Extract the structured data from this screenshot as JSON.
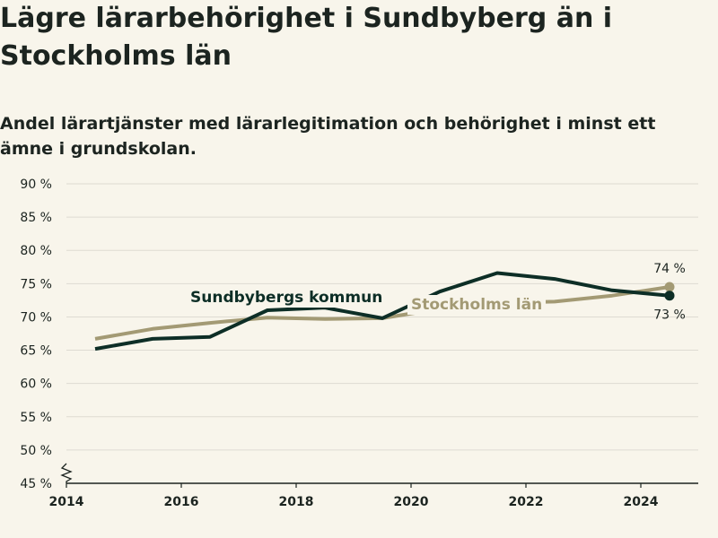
{
  "title": "Lägre lärarbehörighet i Sundbyberg än i Stockholms län",
  "subtitle": "Andel lärartjänster med lärarlegitimation och behörighet i minst ett ämne i grundskolan.",
  "colors": {
    "background": "#f8f5eb",
    "sundbyberg": "#0d2e26",
    "stockholm": "#a39a74",
    "grid": "#dedbd2",
    "axis": "#1c2420"
  },
  "chart_data": {
    "type": "line",
    "x_ticks": [
      "2014",
      "2016",
      "2018",
      "2020",
      "2022",
      "2024"
    ],
    "y_ticks": [
      "45 %",
      "50 %",
      "55 %",
      "60 %",
      "65 %",
      "70 %",
      "75 %",
      "80 %",
      "85 %",
      "90 %"
    ],
    "xlim": [
      2014,
      2025
    ],
    "ylim": [
      45,
      90
    ],
    "y_axis_break": true,
    "grid": true,
    "series": [
      {
        "name": "Stockholms län",
        "color": "#a39a74",
        "x": [
          2014.5,
          2015.5,
          2016.5,
          2017.5,
          2018.5,
          2019.5,
          2020.5,
          2021.5,
          2022.5,
          2023.5,
          2024.5
        ],
        "y": [
          66.7,
          68.2,
          69.1,
          69.9,
          69.7,
          69.8,
          71.2,
          72.1,
          72.3,
          73.2,
          74.5
        ],
        "end_label": "74 %"
      },
      {
        "name": "Sundbybergs kommun",
        "color": "#0d2e26",
        "x": [
          2014.5,
          2015.5,
          2016.5,
          2017.5,
          2018.5,
          2019.5,
          2020.5,
          2021.5,
          2022.5,
          2023.5,
          2024.5
        ],
        "y": [
          65.2,
          66.7,
          67.0,
          71.0,
          71.4,
          69.8,
          73.8,
          76.6,
          75.7,
          74.0,
          73.2
        ],
        "end_label": "73 %"
      }
    ]
  }
}
